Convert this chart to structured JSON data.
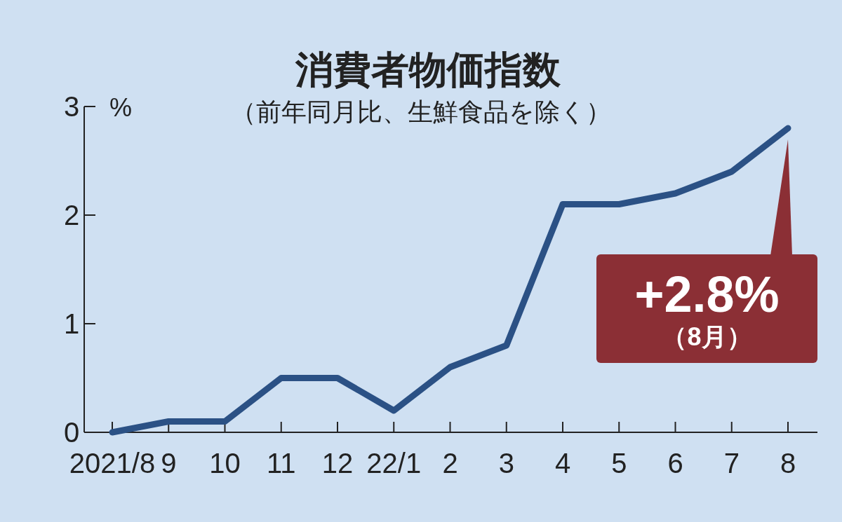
{
  "chart_data": {
    "type": "line",
    "title": "消費者物価指数",
    "subtitle": "（前年同月比、生鮮食品を除く）",
    "ylabel": "%",
    "categories": [
      "2021/8",
      "9",
      "10",
      "11",
      "12",
      "22/1",
      "2",
      "3",
      "4",
      "5",
      "6",
      "7",
      "8"
    ],
    "values": [
      0.0,
      0.1,
      0.1,
      0.5,
      0.5,
      0.2,
      0.6,
      0.8,
      2.1,
      2.1,
      2.2,
      2.4,
      2.8
    ],
    "color": "#2b5185",
    "ylim": [
      0,
      3
    ],
    "yticks": [
      0,
      1,
      2,
      3
    ],
    "grid": false,
    "marker": "none",
    "line_style": "solid",
    "annotations": [
      {
        "text": "+2.8%",
        "x": "8",
        "y": 2.8
      },
      "（8月）"
    ]
  }
}
